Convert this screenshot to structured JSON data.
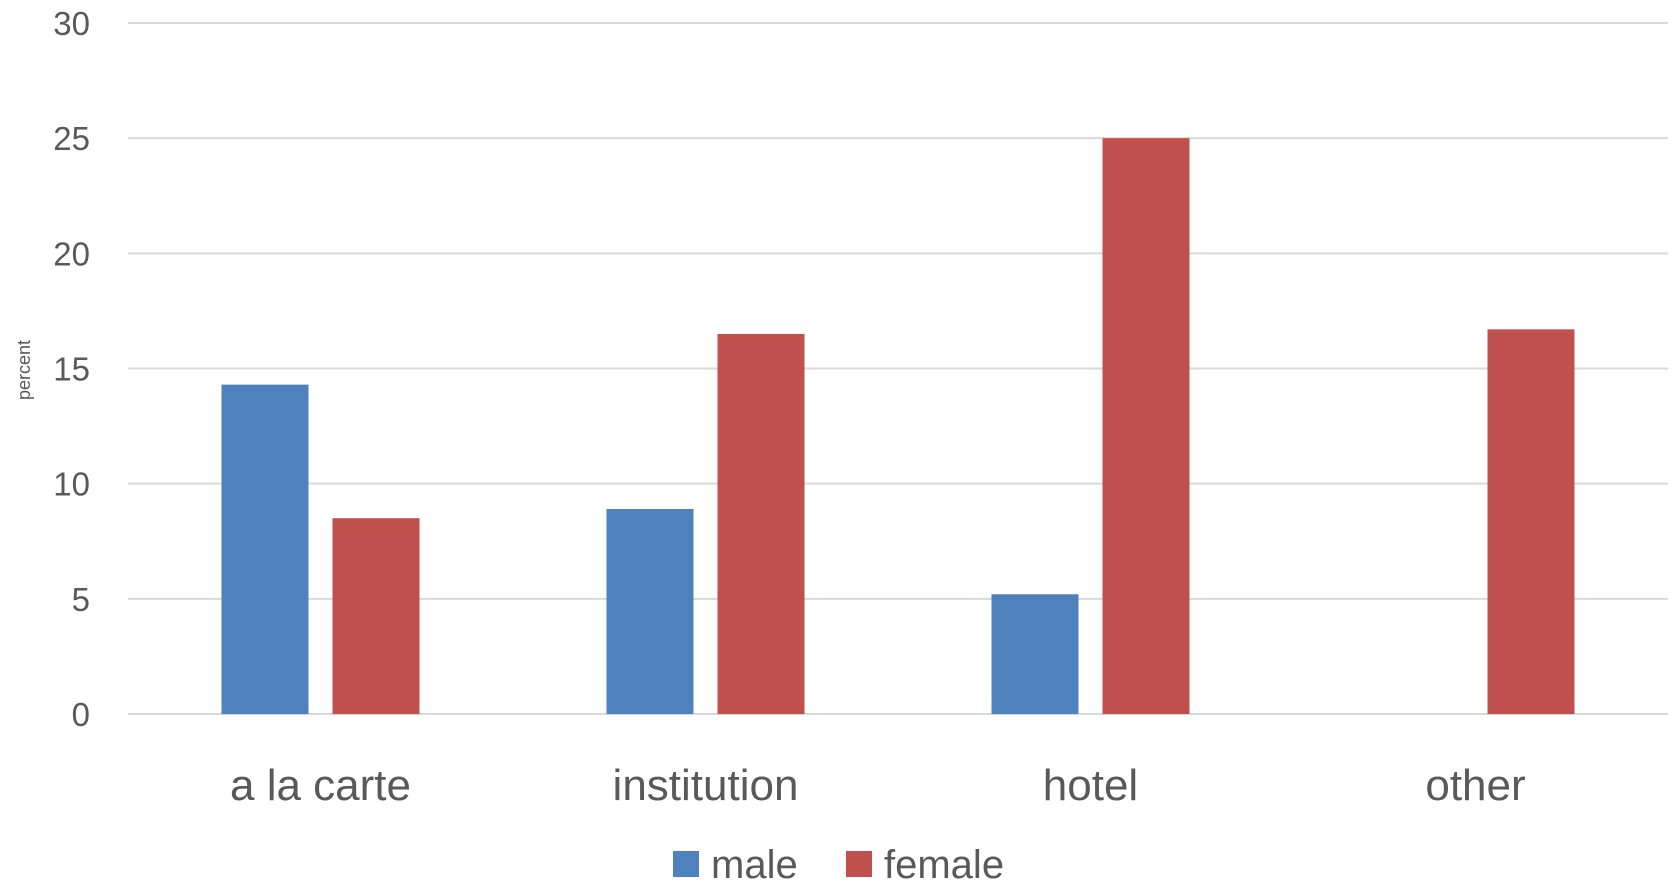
{
  "chart_data": {
    "type": "bar",
    "title": "",
    "xlabel": "",
    "ylabel": "percent",
    "categories": [
      "a la carte",
      "institution",
      "hotel",
      "other"
    ],
    "series": [
      {
        "name": "male",
        "values": [
          14.3,
          8.9,
          5.2,
          0
        ],
        "color": "#4f81bd"
      },
      {
        "name": "female",
        "values": [
          8.5,
          16.5,
          25.0,
          16.7
        ],
        "color": "#c0504d"
      }
    ],
    "ylim": [
      0,
      30
    ],
    "yticks": [
      0,
      5,
      10,
      15,
      20,
      25,
      30
    ],
    "grid": true,
    "legend_position": "bottom"
  }
}
